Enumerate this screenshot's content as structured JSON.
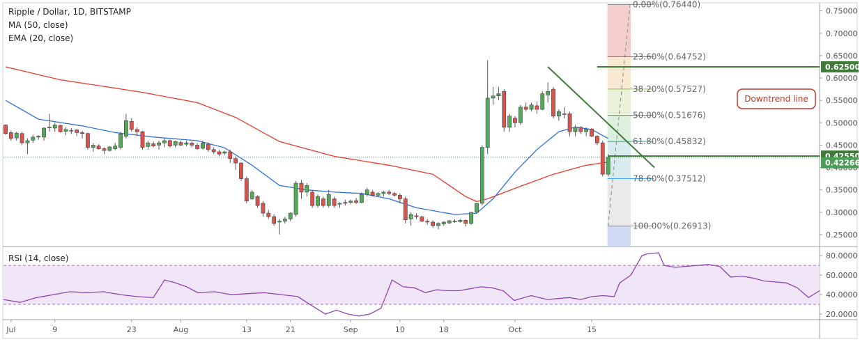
{
  "header": {
    "symbol_line": "Ripple / Dollar, 1D, BITSTAMP",
    "ma_line": "MA (50, close)",
    "ema_line": "EMA (20, close)"
  },
  "rsi_panel": {
    "label": "RSI (14, close)"
  },
  "annotation": {
    "text": "Downtrend line"
  },
  "colors": {
    "up_candle": "#53a85c",
    "down_candle": "#d9534f",
    "ma50": "#e8382b",
    "ema20": "#2f6fe0",
    "rsi": "#8e44ad",
    "fib_top_zone": "#f2c4c4",
    "fib_bottom_zone": "#c9d3f2",
    "levels": "#3f7a3a"
  },
  "chart_data": [
    {
      "type": "candlestick",
      "title": "Ripple / Dollar, 1D, BITSTAMP",
      "x_ticks": [
        "Jul",
        "9",
        "23",
        "Aug",
        "13",
        "21",
        "Sep",
        "10",
        "18",
        "Oct",
        "15"
      ],
      "x_tick_days": [
        1,
        9,
        23,
        32,
        44,
        52,
        63,
        72,
        80,
        93,
        107
      ],
      "y_ticks": [
        "0.25000",
        "0.30000",
        "0.35000",
        "0.40000",
        "0.45000",
        "0.50000",
        "0.55000",
        "0.60000",
        "0.65000",
        "0.70000",
        "0.75000"
      ],
      "ylim": [
        0.225,
        0.765
      ],
      "grid": false,
      "candles": [
        [
          0.495,
          0.496,
          0.473,
          0.476
        ],
        [
          0.478,
          0.482,
          0.46,
          0.465
        ],
        [
          0.466,
          0.48,
          0.46,
          0.477
        ],
        [
          0.476,
          0.48,
          0.45,
          0.455
        ],
        [
          0.455,
          0.465,
          0.43,
          0.46
        ],
        [
          0.461,
          0.473,
          0.455,
          0.468
        ],
        [
          0.468,
          0.472,
          0.462,
          0.47
        ],
        [
          0.468,
          0.49,
          0.46,
          0.488
        ],
        [
          0.489,
          0.52,
          0.48,
          0.49
        ],
        [
          0.488,
          0.5,
          0.48,
          0.495
        ],
        [
          0.494,
          0.496,
          0.478,
          0.48
        ],
        [
          0.481,
          0.49,
          0.472,
          0.485
        ],
        [
          0.483,
          0.488,
          0.475,
          0.482
        ],
        [
          0.484,
          0.486,
          0.47,
          0.478
        ],
        [
          0.478,
          0.482,
          0.465,
          0.476
        ],
        [
          0.476,
          0.478,
          0.44,
          0.445
        ],
        [
          0.445,
          0.455,
          0.435,
          0.45
        ],
        [
          0.448,
          0.452,
          0.44,
          0.442
        ],
        [
          0.442,
          0.445,
          0.43,
          0.438
        ],
        [
          0.438,
          0.448,
          0.436,
          0.446
        ],
        [
          0.442,
          0.455,
          0.438,
          0.448
        ],
        [
          0.445,
          0.48,
          0.44,
          0.475
        ],
        [
          0.47,
          0.52,
          0.465,
          0.505
        ],
        [
          0.503,
          0.51,
          0.48,
          0.485
        ],
        [
          0.485,
          0.49,
          0.47,
          0.48
        ],
        [
          0.48,
          0.482,
          0.44,
          0.445
        ],
        [
          0.447,
          0.46,
          0.44,
          0.455
        ],
        [
          0.453,
          0.458,
          0.445,
          0.448
        ],
        [
          0.45,
          0.46,
          0.44,
          0.455
        ],
        [
          0.455,
          0.465,
          0.445,
          0.46
        ],
        [
          0.46,
          0.462,
          0.445,
          0.448
        ],
        [
          0.45,
          0.46,
          0.445,
          0.458
        ],
        [
          0.456,
          0.46,
          0.448,
          0.45
        ],
        [
          0.452,
          0.46,
          0.448,
          0.455
        ],
        [
          0.455,
          0.458,
          0.445,
          0.45
        ],
        [
          0.45,
          0.455,
          0.44,
          0.442
        ],
        [
          0.443,
          0.46,
          0.44,
          0.455
        ],
        [
          0.452,
          0.456,
          0.435,
          0.44
        ],
        [
          0.44,
          0.445,
          0.43,
          0.435
        ],
        [
          0.435,
          0.44,
          0.425,
          0.43
        ],
        [
          0.432,
          0.437,
          0.428,
          0.435
        ],
        [
          0.435,
          0.44,
          0.41,
          0.42
        ],
        [
          0.42,
          0.425,
          0.395,
          0.41
        ],
        [
          0.41,
          0.412,
          0.37,
          0.375
        ],
        [
          0.375,
          0.38,
          0.32,
          0.325
        ],
        [
          0.33,
          0.35,
          0.328,
          0.345
        ],
        [
          0.335,
          0.338,
          0.31,
          0.315
        ],
        [
          0.32,
          0.325,
          0.29,
          0.298
        ],
        [
          0.298,
          0.305,
          0.285,
          0.29
        ],
        [
          0.29,
          0.295,
          0.27,
          0.275
        ],
        [
          0.278,
          0.285,
          0.25,
          0.28
        ],
        [
          0.28,
          0.29,
          0.275,
          0.285
        ],
        [
          0.285,
          0.3,
          0.28,
          0.298
        ],
        [
          0.295,
          0.37,
          0.29,
          0.365
        ],
        [
          0.365,
          0.372,
          0.33,
          0.345
        ],
        [
          0.345,
          0.365,
          0.335,
          0.36
        ],
        [
          0.345,
          0.35,
          0.31,
          0.315
        ],
        [
          0.315,
          0.34,
          0.31,
          0.335
        ],
        [
          0.33,
          0.335,
          0.31,
          0.315
        ],
        [
          0.315,
          0.35,
          0.31,
          0.34
        ],
        [
          0.33,
          0.335,
          0.31,
          0.315
        ],
        [
          0.318,
          0.322,
          0.31,
          0.32
        ],
        [
          0.32,
          0.328,
          0.315,
          0.322
        ],
        [
          0.322,
          0.328,
          0.318,
          0.325
        ],
        [
          0.326,
          0.332,
          0.318,
          0.322
        ],
        [
          0.322,
          0.345,
          0.32,
          0.34
        ],
        [
          0.34,
          0.355,
          0.335,
          0.35
        ],
        [
          0.345,
          0.35,
          0.335,
          0.338
        ],
        [
          0.338,
          0.345,
          0.335,
          0.342
        ],
        [
          0.342,
          0.348,
          0.335,
          0.345
        ],
        [
          0.345,
          0.35,
          0.338,
          0.342
        ],
        [
          0.342,
          0.345,
          0.335,
          0.338
        ],
        [
          0.338,
          0.342,
          0.32,
          0.33
        ],
        [
          0.33,
          0.335,
          0.275,
          0.283
        ],
        [
          0.285,
          0.3,
          0.27,
          0.295
        ],
        [
          0.292,
          0.298,
          0.285,
          0.29
        ],
        [
          0.29,
          0.292,
          0.278,
          0.28
        ],
        [
          0.28,
          0.285,
          0.272,
          0.278
        ],
        [
          0.278,
          0.282,
          0.265,
          0.27
        ],
        [
          0.27,
          0.278,
          0.262,
          0.275
        ],
        [
          0.274,
          0.28,
          0.27,
          0.278
        ],
        [
          0.276,
          0.283,
          0.274,
          0.281
        ],
        [
          0.279,
          0.284,
          0.276,
          0.28
        ],
        [
          0.279,
          0.285,
          0.277,
          0.282
        ],
        [
          0.282,
          0.284,
          0.268,
          0.275
        ],
        [
          0.275,
          0.3,
          0.272,
          0.3
        ],
        [
          0.3,
          0.32,
          0.298,
          0.32
        ],
        [
          0.32,
          0.45,
          0.315,
          0.445
        ],
        [
          0.445,
          0.64,
          0.43,
          0.555
        ],
        [
          0.555,
          0.58,
          0.54,
          0.56
        ],
        [
          0.56,
          0.58,
          0.55,
          0.565
        ],
        [
          0.57,
          0.575,
          0.48,
          0.49
        ],
        [
          0.49,
          0.52,
          0.48,
          0.515
        ],
        [
          0.51,
          0.515,
          0.49,
          0.5
        ],
        [
          0.5,
          0.54,
          0.495,
          0.535
        ],
        [
          0.535,
          0.545,
          0.525,
          0.53
        ],
        [
          0.53,
          0.545,
          0.525,
          0.54
        ],
        [
          0.538,
          0.548,
          0.52,
          0.53
        ],
        [
          0.53,
          0.57,
          0.528,
          0.565
        ],
        [
          0.562,
          0.59,
          0.545,
          0.57
        ],
        [
          0.575,
          0.58,
          0.51,
          0.515
        ],
        [
          0.515,
          0.53,
          0.505,
          0.525
        ],
        [
          0.52,
          0.535,
          0.51,
          0.52
        ],
        [
          0.52,
          0.525,
          0.47,
          0.48
        ],
        [
          0.48,
          0.495,
          0.47,
          0.49
        ],
        [
          0.49,
          0.492,
          0.475,
          0.48
        ],
        [
          0.48,
          0.49,
          0.47,
          0.486
        ],
        [
          0.486,
          0.488,
          0.468,
          0.47
        ],
        [
          0.47,
          0.472,
          0.45,
          0.455
        ],
        [
          0.455,
          0.46,
          0.38,
          0.385
        ],
        [
          0.385,
          0.43,
          0.38,
          0.42266
        ]
      ],
      "ma50": [
        [
          0,
          0.625
        ],
        [
          10,
          0.596
        ],
        [
          25,
          0.568
        ],
        [
          35,
          0.545
        ],
        [
          42,
          0.512
        ],
        [
          50,
          0.458
        ],
        [
          60,
          0.425
        ],
        [
          70,
          0.405
        ],
        [
          78,
          0.385
        ],
        [
          84,
          0.335
        ],
        [
          86,
          0.324
        ],
        [
          88,
          0.33
        ],
        [
          94,
          0.358
        ],
        [
          100,
          0.385
        ],
        [
          106,
          0.405
        ],
        [
          110,
          0.412
        ]
      ],
      "ema20": [
        [
          0,
          0.55
        ],
        [
          6,
          0.508
        ],
        [
          14,
          0.493
        ],
        [
          20,
          0.478
        ],
        [
          27,
          0.468
        ],
        [
          35,
          0.46
        ],
        [
          40,
          0.444
        ],
        [
          45,
          0.405
        ],
        [
          50,
          0.36
        ],
        [
          55,
          0.35
        ],
        [
          60,
          0.345
        ],
        [
          65,
          0.342
        ],
        [
          70,
          0.33
        ],
        [
          75,
          0.31
        ],
        [
          82,
          0.295
        ],
        [
          86,
          0.298
        ],
        [
          89,
          0.33
        ],
        [
          93,
          0.39
        ],
        [
          97,
          0.44
        ],
        [
          101,
          0.48
        ],
        [
          104,
          0.49
        ],
        [
          107,
          0.485
        ],
        [
          110,
          0.465
        ]
      ],
      "fibonacci": [
        {
          "label": "0.00%(0.76440)",
          "value": 0.7644
        },
        {
          "label": "23.60%(0.64752)",
          "value": 0.64752
        },
        {
          "label": "38.20%(0.57527)",
          "value": 0.57527
        },
        {
          "label": "50.00%(0.51676)",
          "value": 0.51676
        },
        {
          "label": "61.80%(0.45832)",
          "value": 0.45832
        },
        {
          "label": "78.60%(0.37512)",
          "value": 0.37512
        },
        {
          "label": "100.00%(0.26913)",
          "value": 0.26913
        }
      ],
      "resistance_level": {
        "value": 0.625,
        "label": "0.62500"
      },
      "support_level": {
        "value": 0.4255,
        "label": "0.42550"
      },
      "last_price": {
        "value": 0.42266,
        "label": "0.42266"
      },
      "trendline": [
        [
          99,
          0.625
        ],
        [
          114,
          0.4
        ]
      ],
      "annotation": "Downtrend line"
    },
    {
      "type": "line",
      "title": "RSI (14, close)",
      "y_ticks": [
        "20.0000",
        "40.0000",
        "60.0000",
        "80.0000"
      ],
      "ylim": [
        15,
        88
      ],
      "band": [
        30,
        70
      ],
      "rsi": [
        [
          0,
          35
        ],
        [
          3,
          32
        ],
        [
          6,
          37
        ],
        [
          9,
          40
        ],
        [
          12,
          43
        ],
        [
          15,
          42
        ],
        [
          18,
          43
        ],
        [
          21,
          40
        ],
        [
          24,
          38
        ],
        [
          27,
          37
        ],
        [
          29,
          55
        ],
        [
          31,
          52
        ],
        [
          33,
          48
        ],
        [
          35,
          42
        ],
        [
          38,
          43
        ],
        [
          41,
          40
        ],
        [
          44,
          41
        ],
        [
          47,
          42
        ],
        [
          50,
          40
        ],
        [
          53,
          38
        ],
        [
          56,
          27
        ],
        [
          58,
          20
        ],
        [
          60,
          24
        ],
        [
          62,
          20
        ],
        [
          64,
          18
        ],
        [
          66,
          20
        ],
        [
          68,
          26
        ],
        [
          70,
          55
        ],
        [
          72,
          48
        ],
        [
          74,
          47
        ],
        [
          76,
          42
        ],
        [
          78,
          45
        ],
        [
          80,
          44
        ],
        [
          82,
          44
        ],
        [
          84,
          46
        ],
        [
          86,
          48
        ],
        [
          88,
          47
        ],
        [
          90,
          44
        ],
        [
          92,
          34
        ],
        [
          95,
          39
        ],
        [
          98,
          35
        ],
        [
          100,
          36
        ],
        [
          102,
          37
        ],
        [
          104,
          35
        ],
        [
          106,
          38
        ],
        [
          108,
          39
        ],
        [
          110,
          38
        ],
        [
          111,
          52
        ],
        [
          113,
          60
        ],
        [
          115,
          80
        ],
        [
          116,
          82
        ],
        [
          118,
          83
        ],
        [
          119,
          70
        ],
        [
          121,
          68
        ],
        [
          123,
          69
        ],
        [
          125,
          70
        ],
        [
          127,
          71
        ],
        [
          129,
          69
        ],
        [
          131,
          58
        ],
        [
          133,
          59
        ],
        [
          135,
          57
        ],
        [
          137,
          54
        ],
        [
          139,
          53
        ],
        [
          141,
          52
        ],
        [
          143,
          47
        ],
        [
          145,
          37
        ],
        [
          147,
          44
        ]
      ]
    }
  ]
}
